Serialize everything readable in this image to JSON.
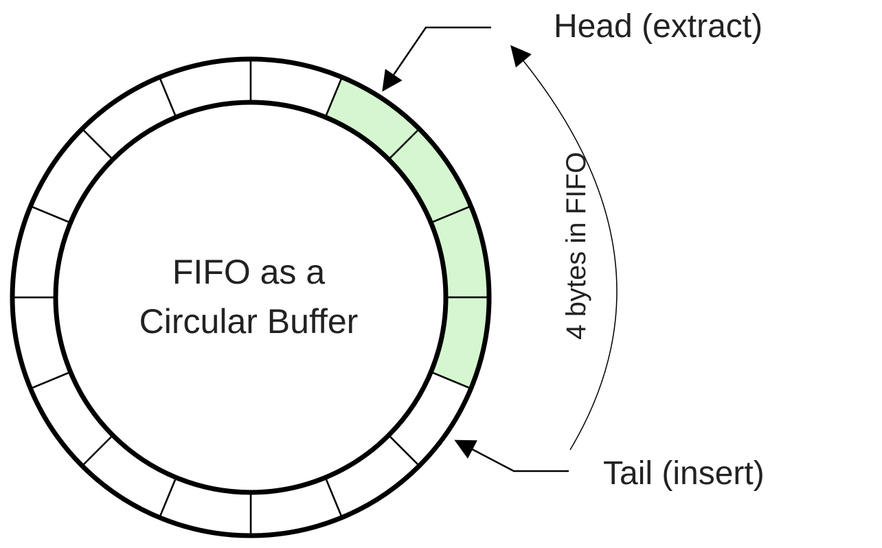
{
  "diagram": {
    "center_text": [
      "FIFO as a",
      "Circular Buffer"
    ],
    "head_label": "Head (extract)",
    "tail_label": "Tail (insert)",
    "count_label": "4 bytes in FIFO",
    "slot_count": 16,
    "filled_slots": 4,
    "colors": {
      "filled": "#d5f7d0",
      "empty": "#ffffff",
      "stroke": "#000000",
      "text": "#222222"
    }
  }
}
